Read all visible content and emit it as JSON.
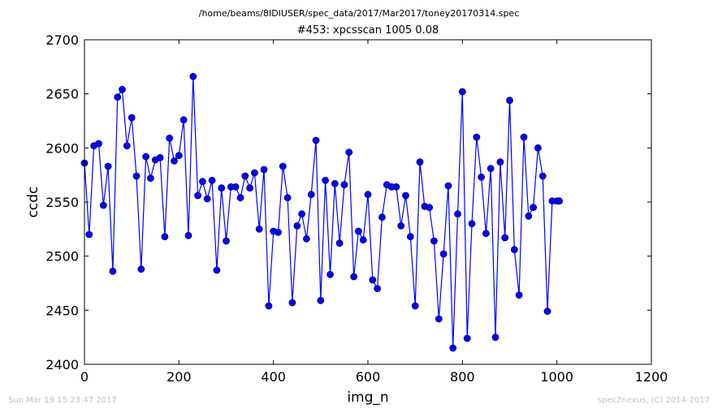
{
  "header": {
    "file_path": "/home/beams/8IDIUSER/spec_data/2017/Mar2017/toney20170314.spec"
  },
  "footer": {
    "timestamp": "Sun Mar 19 15:23:47 2017",
    "credit": "spec2nexus, (C) 2014-2017"
  },
  "colors": {
    "series": "#0000ff",
    "marker_fill": "#0000ff",
    "marker_edge": "#000080",
    "frame": "#000000",
    "footer_text": "#c0c0c0"
  },
  "chart_data": {
    "type": "line",
    "title": "#453: xpcsscan 1005 0.08",
    "xlabel": "img_n",
    "ylabel": "ccdc",
    "xlim": [
      0,
      1200
    ],
    "ylim": [
      2400,
      2700
    ],
    "xticks": [
      "0",
      "200",
      "400",
      "600",
      "800",
      "1000",
      "1200"
    ],
    "yticks": [
      "2400",
      "2450",
      "2500",
      "2550",
      "2600",
      "2650",
      "2700"
    ],
    "grid": false,
    "series": [
      {
        "x": [
          0,
          10,
          20,
          30,
          40,
          50,
          60,
          70,
          80,
          90,
          100,
          110,
          120,
          130,
          140,
          150,
          160,
          170,
          180,
          190,
          200,
          210,
          220,
          230,
          240,
          250,
          260,
          270,
          280,
          290,
          300,
          310,
          320,
          330,
          340,
          350,
          360,
          370,
          380,
          390,
          400,
          410,
          420,
          430,
          440,
          450,
          460,
          470,
          480,
          490,
          500,
          510,
          520,
          530,
          540,
          550,
          560,
          570,
          580,
          590,
          600,
          610,
          620,
          630,
          640,
          650,
          660,
          670,
          680,
          690,
          700,
          710,
          720,
          730,
          740,
          750,
          760,
          770,
          780,
          790,
          800,
          810,
          820,
          830,
          840,
          850,
          860,
          870,
          880,
          890,
          900,
          910,
          920,
          930,
          940,
          950,
          960,
          970,
          980,
          990,
          1000,
          1005
        ],
        "y": [
          2586,
          2520,
          2602,
          2604,
          2547,
          2583,
          2486,
          2647,
          2654,
          2602,
          2628,
          2574,
          2488,
          2592,
          2572,
          2589,
          2591,
          2518,
          2609,
          2588,
          2593,
          2626,
          2519,
          2666,
          2556,
          2569,
          2553,
          2570,
          2487,
          2563,
          2514,
          2564,
          2564,
          2554,
          2574,
          2563,
          2577,
          2525,
          2580,
          2454,
          2523,
          2522,
          2583,
          2554,
          2457,
          2528,
          2539,
          2516,
          2557,
          2607,
          2459,
          2570,
          2483,
          2567,
          2512,
          2566,
          2596,
          2481,
          2523,
          2515,
          2557,
          2478,
          2470,
          2536,
          2566,
          2564,
          2564,
          2528,
          2556,
          2518,
          2454,
          2587,
          2546,
          2545,
          2514,
          2442,
          2502,
          2565,
          2415,
          2539,
          2652,
          2424,
          2530,
          2610,
          2573,
          2521,
          2581,
          2425,
          2587,
          2517,
          2644,
          2506,
          2464,
          2610,
          2537,
          2545,
          2600,
          2574,
          2449,
          2551,
          2551,
          2551
        ]
      }
    ]
  }
}
